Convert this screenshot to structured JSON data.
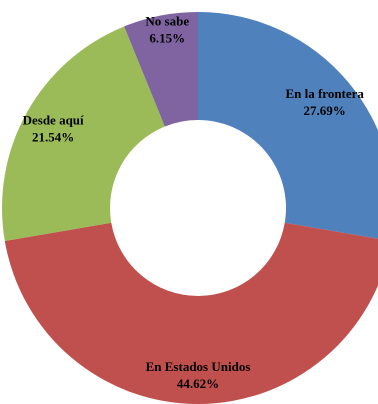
{
  "chart_data": {
    "type": "pie",
    "variant": "donut",
    "title": "",
    "start_angle_deg": 0,
    "direction": "clockwise",
    "slices": [
      {
        "label": "En la frontera",
        "value": 27.69,
        "value_text": "27.69%",
        "color": "#4F81BD"
      },
      {
        "label": "En Estados Unidos",
        "value": 44.62,
        "value_text": "44.62%",
        "color": "#C0504D"
      },
      {
        "label": "Desde aquí",
        "value": 21.54,
        "value_text": "21.54%",
        "color": "#9BBB59"
      },
      {
        "label": "No sabe",
        "value": 6.15,
        "value_text": "6.15%",
        "color": "#8064A2"
      }
    ],
    "legend": "none"
  }
}
